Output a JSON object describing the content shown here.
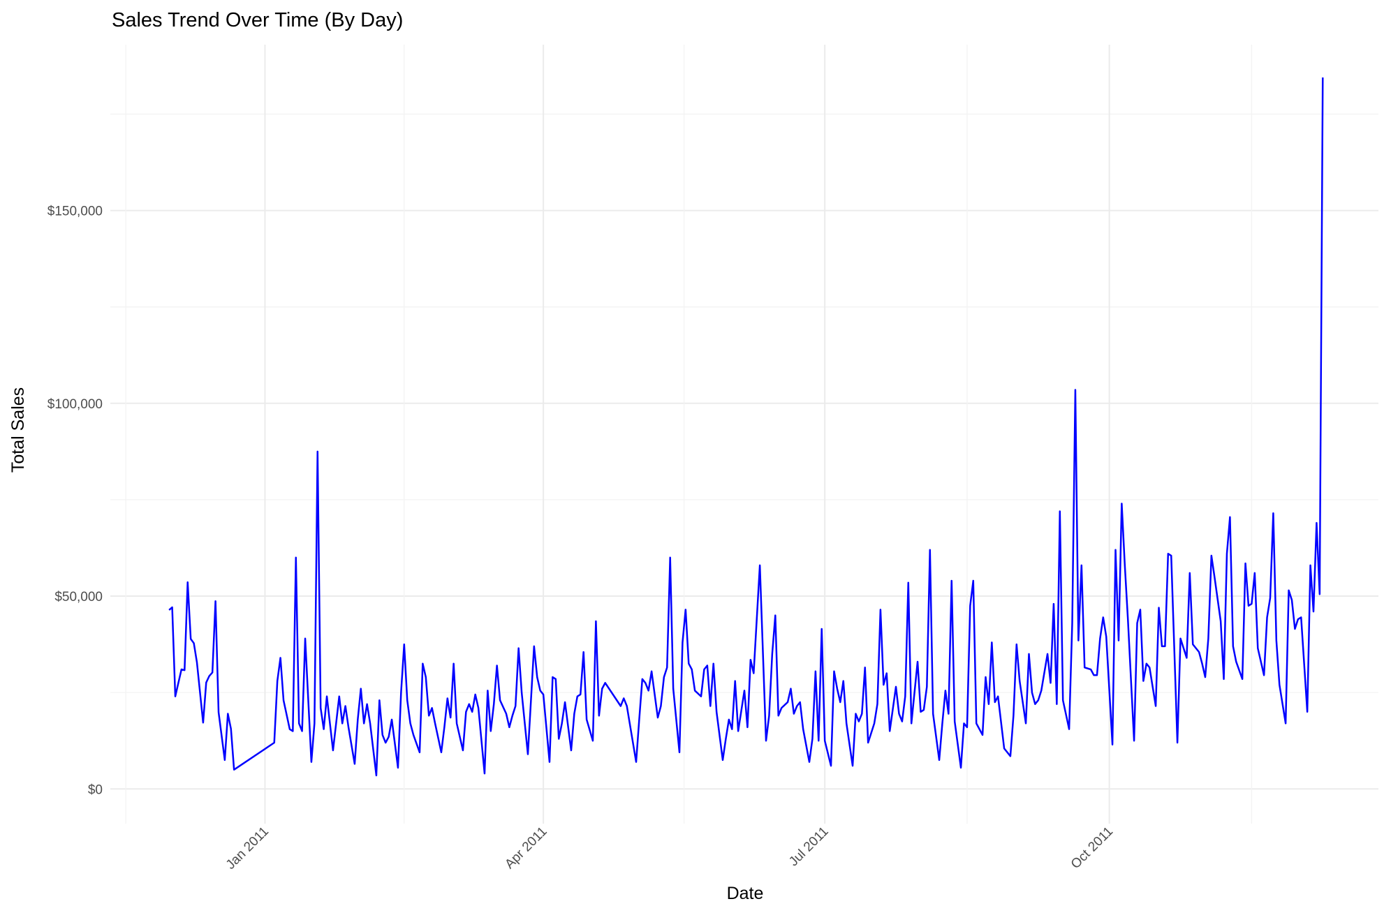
{
  "chart_data": {
    "type": "line",
    "title": "Sales Trend Over Time (By Day)",
    "x_label": "Date",
    "y_label": "Total Sales",
    "color": "#0000ff",
    "grid": true,
    "xlim": [
      "2010-11-12",
      "2011-12-27"
    ],
    "xticks": [
      {
        "value": "2011-01",
        "label": "Jan 2011"
      },
      {
        "value": "2011-04",
        "label": "Apr 2011"
      },
      {
        "value": "2011-07",
        "label": "Jul 2011"
      },
      {
        "value": "2011-10",
        "label": "Oct 2011"
      }
    ],
    "ylim": [
      -9000,
      193000
    ],
    "yticks": [
      {
        "value": 0,
        "label": "$0"
      },
      {
        "value": 50000,
        "label": "$50,000"
      },
      {
        "value": 100000,
        "label": "$100,000"
      },
      {
        "value": 150000,
        "label": "$150,000"
      }
    ],
    "x": [
      "2010-12-01",
      "2010-12-02",
      "2010-12-03",
      "2010-12-05",
      "2010-12-06",
      "2010-12-07",
      "2010-12-08",
      "2010-12-09",
      "2010-12-10",
      "2010-12-12",
      "2010-12-13",
      "2010-12-14",
      "2010-12-15",
      "2010-12-16",
      "2010-12-17",
      "2010-12-19",
      "2010-12-20",
      "2010-12-21",
      "2010-12-22",
      "2011-01-04",
      "2011-01-05",
      "2011-01-06",
      "2011-01-07",
      "2011-01-09",
      "2011-01-10",
      "2011-01-11",
      "2011-01-12",
      "2011-01-13",
      "2011-01-14",
      "2011-01-16",
      "2011-01-17",
      "2011-01-18",
      "2011-01-19",
      "2011-01-20",
      "2011-01-21",
      "2011-01-23",
      "2011-01-24",
      "2011-01-25",
      "2011-01-26",
      "2011-01-27",
      "2011-01-28",
      "2011-01-30",
      "2011-01-31",
      "2011-02-01",
      "2011-02-02",
      "2011-02-03",
      "2011-02-04",
      "2011-02-06",
      "2011-02-07",
      "2011-02-08",
      "2011-02-09",
      "2011-02-10",
      "2011-02-11",
      "2011-02-13",
      "2011-02-14",
      "2011-02-15",
      "2011-02-16",
      "2011-02-17",
      "2011-02-18",
      "2011-02-20",
      "2011-02-21",
      "2011-02-22",
      "2011-02-23",
      "2011-02-24",
      "2011-02-25",
      "2011-02-27",
      "2011-02-28",
      "2011-03-01",
      "2011-03-02",
      "2011-03-03",
      "2011-03-04",
      "2011-03-06",
      "2011-03-07",
      "2011-03-08",
      "2011-03-09",
      "2011-03-10",
      "2011-03-11",
      "2011-03-13",
      "2011-03-14",
      "2011-03-15",
      "2011-03-16",
      "2011-03-17",
      "2011-03-18",
      "2011-03-20",
      "2011-03-21",
      "2011-03-22",
      "2011-03-23",
      "2011-03-24",
      "2011-03-25",
      "2011-03-27",
      "2011-03-28",
      "2011-03-29",
      "2011-03-30",
      "2011-03-31",
      "2011-04-01",
      "2011-04-03",
      "2011-04-04",
      "2011-04-05",
      "2011-04-06",
      "2011-04-07",
      "2011-04-08",
      "2011-04-10",
      "2011-04-11",
      "2011-04-12",
      "2011-04-13",
      "2011-04-14",
      "2011-04-15",
      "2011-04-17",
      "2011-04-18",
      "2011-04-19",
      "2011-04-20",
      "2011-04-21",
      "2011-04-26",
      "2011-04-27",
      "2011-04-28",
      "2011-05-01",
      "2011-05-02",
      "2011-05-03",
      "2011-05-04",
      "2011-05-05",
      "2011-05-06",
      "2011-05-08",
      "2011-05-09",
      "2011-05-10",
      "2011-05-11",
      "2011-05-12",
      "2011-05-13",
      "2011-05-15",
      "2011-05-16",
      "2011-05-17",
      "2011-05-18",
      "2011-05-19",
      "2011-05-20",
      "2011-05-22",
      "2011-05-23",
      "2011-05-24",
      "2011-05-25",
      "2011-05-26",
      "2011-05-27",
      "2011-05-29",
      "2011-05-30",
      "2011-05-31",
      "2011-06-01",
      "2011-06-02",
      "2011-06-03",
      "2011-06-05",
      "2011-06-06",
      "2011-06-07",
      "2011-06-08",
      "2011-06-09",
      "2011-06-10",
      "2011-06-12",
      "2011-06-13",
      "2011-06-14",
      "2011-06-15",
      "2011-06-16",
      "2011-06-17",
      "2011-06-19",
      "2011-06-20",
      "2011-06-21",
      "2011-06-22",
      "2011-06-23",
      "2011-06-24",
      "2011-06-26",
      "2011-06-27",
      "2011-06-28",
      "2011-06-29",
      "2011-06-30",
      "2011-07-01",
      "2011-07-03",
      "2011-07-04",
      "2011-07-05",
      "2011-07-06",
      "2011-07-07",
      "2011-07-08",
      "2011-07-10",
      "2011-07-11",
      "2011-07-12",
      "2011-07-13",
      "2011-07-14",
      "2011-07-15",
      "2011-07-17",
      "2011-07-18",
      "2011-07-19",
      "2011-07-20",
      "2011-07-21",
      "2011-07-22",
      "2011-07-24",
      "2011-07-25",
      "2011-07-26",
      "2011-07-27",
      "2011-07-28",
      "2011-07-29",
      "2011-07-31",
      "2011-08-01",
      "2011-08-02",
      "2011-08-03",
      "2011-08-04",
      "2011-08-05",
      "2011-08-07",
      "2011-08-08",
      "2011-08-09",
      "2011-08-10",
      "2011-08-11",
      "2011-08-12",
      "2011-08-14",
      "2011-08-15",
      "2011-08-16",
      "2011-08-17",
      "2011-08-18",
      "2011-08-19",
      "2011-08-21",
      "2011-08-22",
      "2011-08-23",
      "2011-08-24",
      "2011-08-25",
      "2011-08-26",
      "2011-08-28",
      "2011-08-30",
      "2011-08-31",
      "2011-09-01",
      "2011-09-02",
      "2011-09-04",
      "2011-09-05",
      "2011-09-06",
      "2011-09-07",
      "2011-09-08",
      "2011-09-09",
      "2011-09-11",
      "2011-09-12",
      "2011-09-13",
      "2011-09-14",
      "2011-09-15",
      "2011-09-16",
      "2011-09-18",
      "2011-09-19",
      "2011-09-20",
      "2011-09-21",
      "2011-09-22",
      "2011-09-23",
      "2011-09-25",
      "2011-09-26",
      "2011-09-27",
      "2011-09-28",
      "2011-09-29",
      "2011-09-30",
      "2011-10-02",
      "2011-10-03",
      "2011-10-04",
      "2011-10-05",
      "2011-10-06",
      "2011-10-07",
      "2011-10-09",
      "2011-10-10",
      "2011-10-11",
      "2011-10-12",
      "2011-10-13",
      "2011-10-14",
      "2011-10-16",
      "2011-10-17",
      "2011-10-18",
      "2011-10-19",
      "2011-10-20",
      "2011-10-21",
      "2011-10-23",
      "2011-10-24",
      "2011-10-25",
      "2011-10-26",
      "2011-10-27",
      "2011-10-28",
      "2011-10-30",
      "2011-10-31",
      "2011-11-01",
      "2011-11-02",
      "2011-11-03",
      "2011-11-04",
      "2011-11-06",
      "2011-11-07",
      "2011-11-08",
      "2011-11-09",
      "2011-11-10",
      "2011-11-11",
      "2011-11-13",
      "2011-11-14",
      "2011-11-15",
      "2011-11-16",
      "2011-11-17",
      "2011-11-18",
      "2011-11-20",
      "2011-11-21",
      "2011-11-22",
      "2011-11-23",
      "2011-11-24",
      "2011-11-25",
      "2011-11-27",
      "2011-11-28",
      "2011-11-29",
      "2011-11-30",
      "2011-12-01",
      "2011-12-02",
      "2011-12-04",
      "2011-12-05",
      "2011-12-06",
      "2011-12-07",
      "2011-12-08",
      "2011-12-09"
    ],
    "values": [
      46400,
      47100,
      24000,
      31000,
      30800,
      53600,
      38900,
      37800,
      32800,
      17200,
      27600,
      29300,
      30200,
      48700,
      19900,
      7500,
      19500,
      15600,
      5000,
      12000,
      28000,
      34000,
      23000,
      15500,
      15000,
      60000,
      17000,
      15000,
      39000,
      7000,
      17000,
      87500,
      21000,
      15500,
      24000,
      10000,
      17000,
      24000,
      17000,
      21500,
      16000,
      6500,
      18000,
      26000,
      17000,
      22000,
      17000,
      3500,
      23000,
      14000,
      12000,
      13500,
      18000,
      5500,
      25000,
      37500,
      23000,
      17000,
      14000,
      9500,
      32500,
      29000,
      19000,
      21000,
      17000,
      9500,
      16000,
      23500,
      18500,
      32500,
      17000,
      10000,
      20000,
      22000,
      20000,
      24500,
      21000,
      4000,
      25500,
      15000,
      22000,
      32000,
      23000,
      19500,
      16000,
      19000,
      21500,
      36500,
      25000,
      9000,
      23000,
      37000,
      29000,
      25500,
      24500,
      7000,
      29000,
      28500,
      13000,
      17000,
      22500,
      10000,
      19500,
      24000,
      24500,
      35500,
      18000,
      12500,
      43500,
      19000,
      26000,
      27500,
      21500,
      23500,
      21500,
      7000,
      18000,
      28500,
      27500,
      25500,
      30500,
      18500,
      21500,
      29000,
      31500,
      60000,
      26000,
      9500,
      38000,
      46500,
      32500,
      31000,
      25500,
      24000,
      31000,
      32000,
      21500,
      32500,
      20000,
      7500,
      13000,
      18000,
      15500,
      28000,
      15000,
      25500,
      16000,
      33500,
      30000,
      44000,
      58000,
      12500,
      19000,
      35000,
      45000,
      19000,
      21000,
      22500,
      26000,
      19500,
      21500,
      22500,
      15500,
      7000,
      13000,
      30500,
      12500,
      41500,
      12500,
      6000,
      30500,
      26000,
      22500,
      28000,
      17000,
      6000,
      19500,
      17500,
      19500,
      31500,
      12000,
      17000,
      22000,
      46500,
      27000,
      30000,
      15000,
      26500,
      19500,
      17500,
      24000,
      53500,
      17000,
      33000,
      20000,
      20500,
      26500,
      62000,
      19500,
      7500,
      17000,
      25500,
      19500,
      54000,
      17500,
      5500,
      17000,
      16000,
      47500,
      54000,
      17000,
      14000,
      29000,
      22000,
      38000,
      22500,
      24000,
      10500,
      8500,
      19000,
      37500,
      28000,
      17000,
      35000,
      25000,
      22000,
      23000,
      25500,
      35000,
      27500,
      48000,
      22000,
      72000,
      23000,
      15500,
      43000,
      103500,
      38500,
      58000,
      31500,
      31000,
      29500,
      29500,
      39000,
      44500,
      39500,
      11500,
      62000,
      38500,
      74000,
      58000,
      44000,
      12500,
      43000,
      46500,
      28000,
      32500,
      31500,
      21500,
      47000,
      37000,
      37000,
      61000,
      60500,
      12000,
      39000,
      36500,
      34000,
      56000,
      37500,
      35500,
      32500,
      29000,
      39000,
      60500,
      55000,
      43500,
      28500,
      61000,
      70500,
      37000,
      33000,
      28500,
      58500,
      47500,
      48000,
      56000,
      36500,
      29500,
      44500,
      49500,
      71500,
      38500,
      27000,
      17000,
      51500,
      49000,
      41500,
      44000,
      44500,
      20000,
      58000,
      46000,
      69000,
      50500,
      184500
    ]
  }
}
